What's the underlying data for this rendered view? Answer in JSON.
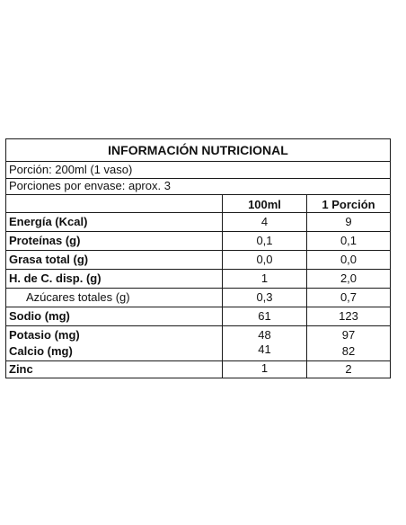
{
  "label": {
    "title": "INFORMACIÓN NUTRICIONAL",
    "serving": "Porción: 200ml (1 vaso)",
    "servings_per_container": "Porciones por envase: aprox. 3",
    "columns": [
      "100ml",
      "1 Porción"
    ],
    "rows": [
      {
        "name": "Energía (Kcal)",
        "per100": "4",
        "perServing": "9"
      },
      {
        "name": "Proteínas (g)",
        "per100": "0,1",
        "perServing": "0,1"
      },
      {
        "name": "Grasa total (g)",
        "per100": "0,0",
        "perServing": "0,0"
      },
      {
        "name": "H. de C. disp. (g)",
        "per100": "1",
        "perServing": "2,0"
      },
      {
        "name": "Azúcares totales (g)",
        "per100": "0,3",
        "perServing": "0,7"
      },
      {
        "name": "Sodio (mg)",
        "per100": "61",
        "perServing": "123"
      },
      {
        "name": "Potasio (mg)",
        "per100": "48",
        "perServing": "97"
      },
      {
        "name": "Calcio (mg)",
        "per100": "41",
        "perServing": "82"
      },
      {
        "name": "Zinc",
        "per100": "1",
        "perServing": "2"
      }
    ]
  }
}
